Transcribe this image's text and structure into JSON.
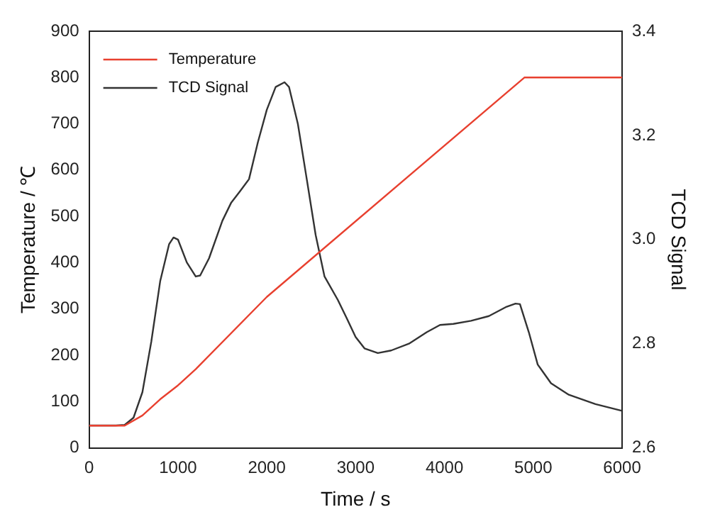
{
  "chart_data": {
    "type": "line",
    "xlabel": "Time / s",
    "ylabel": "Temperature / ℃",
    "y2label": "TCD Signal",
    "xlim": [
      0,
      6000
    ],
    "xticks": [
      0,
      1000,
      2000,
      3000,
      4000,
      5000,
      6000
    ],
    "ylim": [
      0,
      900
    ],
    "yticks": [
      0,
      100,
      200,
      300,
      400,
      500,
      600,
      700,
      800,
      900
    ],
    "y2lim": [
      2.6,
      3.4
    ],
    "y2ticks": [
      {
        "value": 2.6,
        "label": "2.6"
      },
      {
        "value": 2.8,
        "label": "2.8"
      },
      {
        "value": 3.0,
        "label": "3.0"
      },
      {
        "value": 3.2,
        "label": "3.2"
      },
      {
        "value": 3.4,
        "label": "3.4"
      }
    ],
    "grid": false,
    "legend": "top left",
    "marker": "none",
    "line_style": "solid",
    "series": [
      {
        "name": "Temperature",
        "color": "#e8402f",
        "x": [
          0,
          400,
          600,
          800,
          1000,
          1200,
          2000,
          4900,
          6000
        ],
        "values": [
          48,
          48,
          70,
          105,
          135,
          170,
          326,
          800,
          800
        ]
      },
      {
        "name": "TCD Signal",
        "color": "#333333",
        "axis": "y2",
        "x": [
          0,
          300,
          400,
          500,
          600,
          700,
          800,
          900,
          950,
          1000,
          1100,
          1200,
          1250,
          1350,
          1500,
          1600,
          1700,
          1800,
          1900,
          2000,
          2100,
          2200,
          2250,
          2350,
          2450,
          2550,
          2650,
          2800,
          2900,
          3000,
          3100,
          3250,
          3400,
          3600,
          3800,
          3950,
          4100,
          4300,
          4500,
          4700,
          4800,
          4850,
          4950,
          5050,
          5200,
          5400,
          5700,
          6000
        ],
        "values": [
          2.643,
          2.643,
          2.644,
          2.658,
          2.707,
          2.804,
          2.92,
          2.991,
          3.004,
          3.0,
          2.956,
          2.929,
          2.931,
          2.964,
          3.036,
          3.071,
          3.093,
          3.116,
          3.187,
          3.249,
          3.293,
          3.302,
          3.293,
          3.222,
          3.116,
          3.009,
          2.929,
          2.884,
          2.849,
          2.813,
          2.791,
          2.782,
          2.787,
          2.8,
          2.822,
          2.836,
          2.838,
          2.844,
          2.853,
          2.871,
          2.877,
          2.876,
          2.822,
          2.76,
          2.724,
          2.702,
          2.684,
          2.671
        ]
      }
    ]
  }
}
